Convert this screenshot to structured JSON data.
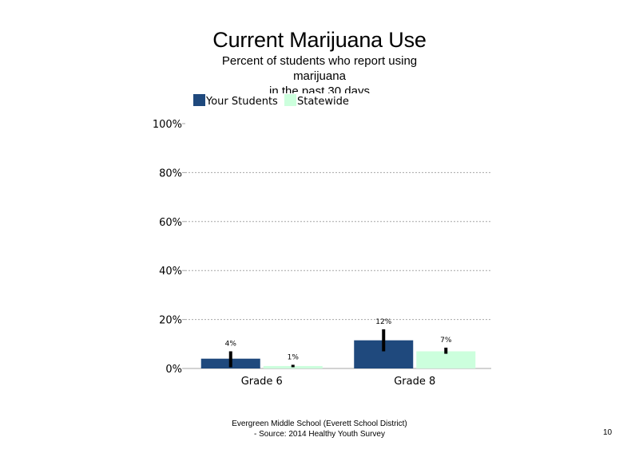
{
  "page": {
    "footer_line1": "Evergreen Middle School (Everett School District)",
    "footer_line2": "- Source: 2014 Healthy Youth Survey",
    "page_number": "10"
  },
  "chart_data": {
    "type": "bar",
    "title": "Current Marijuana Use",
    "subtitle_lines": [
      "Percent of students who report using",
      "marijuana",
      "in the past 30 days"
    ],
    "categories": [
      "Grade 6",
      "Grade 8"
    ],
    "series": [
      {
        "name": "Your Students",
        "color": "#1f497d",
        "values": [
          4,
          11.5
        ],
        "labels": [
          "4%",
          "12%"
        ],
        "error_low": [
          0.5,
          7
        ],
        "error_high": [
          7,
          16
        ]
      },
      {
        "name": "Statewide",
        "color": "#ccffdd",
        "values": [
          1,
          7
        ],
        "labels": [
          "1%",
          "7%"
        ],
        "error_low": [
          0.5,
          6
        ],
        "error_high": [
          1.5,
          8.5
        ]
      }
    ],
    "ylim": [
      0,
      100
    ],
    "yticks": [
      0,
      20,
      40,
      60,
      80,
      100
    ],
    "ytick_labels": [
      "0%",
      "20%",
      "40%",
      "60%",
      "80%",
      "100%"
    ],
    "grid": "horizontal dotted",
    "legend_position": "top-left",
    "error_bar_color": "#000000"
  }
}
